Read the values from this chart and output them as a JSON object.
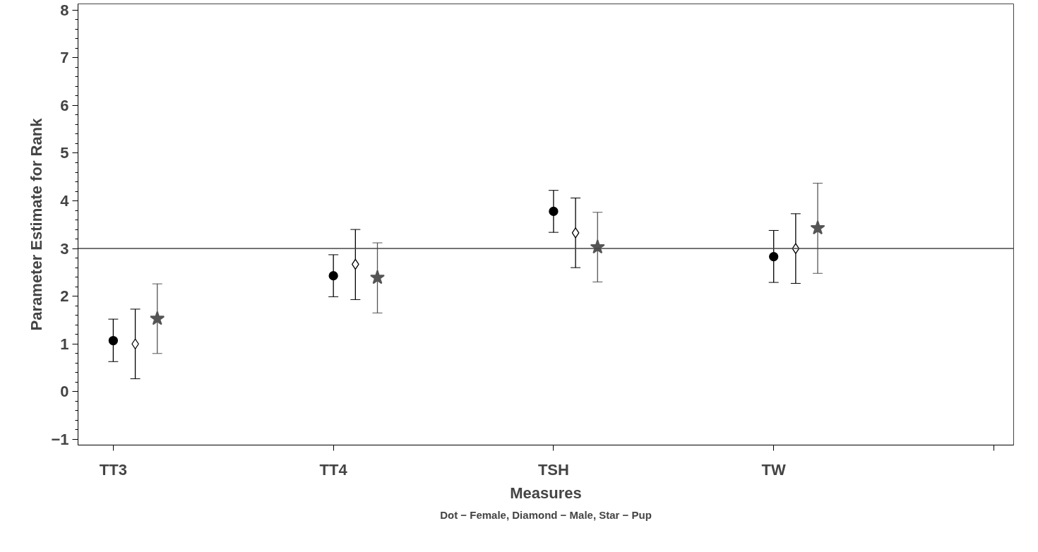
{
  "chart_data": {
    "type": "scatter",
    "xlabel": "Measures",
    "ylabel": "Parameter Estimate for Rank",
    "categories": [
      "TT3",
      "TT4",
      "TSH",
      "TW",
      null
    ],
    "series": [
      {
        "color": "#000000",
        "marker": "circle",
        "values": [
          1.07,
          2.43,
          3.78,
          2.83,
          null
        ],
        "errors": [
          [
            0.63,
            1.52
          ],
          [
            1.99,
            2.87
          ],
          [
            3.34,
            4.22
          ],
          [
            2.29,
            3.38
          ],
          null
        ]
      },
      {
        "color": "#000000",
        "marker": "diamond",
        "values": [
          1.0,
          2.67,
          3.33,
          3.0,
          null
        ],
        "errors": [
          [
            0.27,
            1.73
          ],
          [
            1.93,
            3.4
          ],
          [
            2.6,
            4.06
          ],
          [
            2.27,
            3.73
          ],
          null
        ]
      },
      {
        "color": "#555555",
        "marker": "star",
        "values": [
          1.53,
          2.39,
          3.03,
          3.43,
          null
        ],
        "errors": [
          [
            0.8,
            2.26
          ],
          [
            1.65,
            3.12
          ],
          [
            2.3,
            3.76
          ],
          [
            2.48,
            4.37
          ],
          null
        ]
      }
    ],
    "ylim": [
      -1.12,
      8.13
    ],
    "yticks": [
      {
        "value": -1,
        "label": "−1"
      },
      0,
      1,
      2,
      3,
      4,
      5,
      6,
      7,
      8
    ],
    "ref_lines": [
      {
        "axis": "y",
        "value": 3,
        "color": "#444444"
      }
    ],
    "annotations": [
      "Dot − Female, Diamond − Male, Star − Pup"
    ],
    "grid": false
  }
}
